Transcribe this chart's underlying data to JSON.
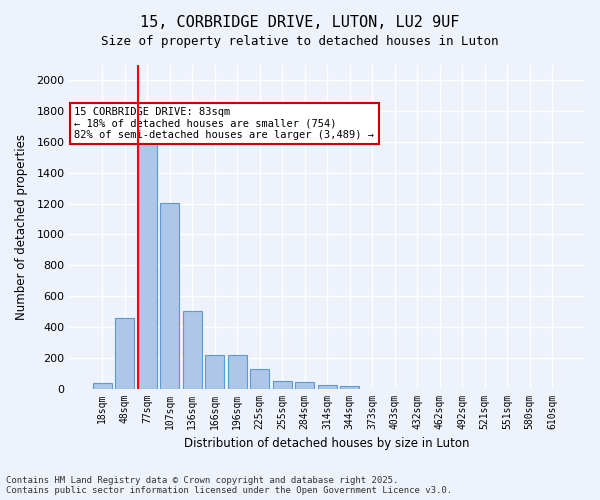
{
  "title_line1": "15, CORBRIDGE DRIVE, LUTON, LU2 9UF",
  "title_line2": "Size of property relative to detached houses in Luton",
  "xlabel": "Distribution of detached houses by size in Luton",
  "ylabel": "Number of detached properties",
  "categories": [
    "18sqm",
    "48sqm",
    "77sqm",
    "107sqm",
    "136sqm",
    "166sqm",
    "196sqm",
    "225sqm",
    "255sqm",
    "284sqm",
    "314sqm",
    "344sqm",
    "373sqm",
    "403sqm",
    "432sqm",
    "462sqm",
    "492sqm",
    "521sqm",
    "551sqm",
    "580sqm",
    "610sqm"
  ],
  "values": [
    35,
    455,
    1620,
    1205,
    505,
    220,
    220,
    125,
    50,
    40,
    25,
    15,
    0,
    0,
    0,
    0,
    0,
    0,
    0,
    0,
    0
  ],
  "bar_color": "#aec6e8",
  "bar_edge_color": "#5b9bd5",
  "red_line_x": 2,
  "annotation_title": "15 CORBRIDGE DRIVE: 83sqm",
  "annotation_line1": "← 18% of detached houses are smaller (754)",
  "annotation_line2": "82% of semi-detached houses are larger (3,489) →",
  "annotation_box_color": "#ffffff",
  "annotation_box_edge": "#cc0000",
  "ylim": [
    0,
    2100
  ],
  "yticks": [
    0,
    200,
    400,
    600,
    800,
    1000,
    1200,
    1400,
    1600,
    1800,
    2000
  ],
  "bg_color": "#eef3fb",
  "plot_bg_color": "#eef3fb",
  "grid_color": "#ffffff",
  "footnote": "Contains HM Land Registry data © Crown copyright and database right 2025.\nContains public sector information licensed under the Open Government Licence v3.0."
}
